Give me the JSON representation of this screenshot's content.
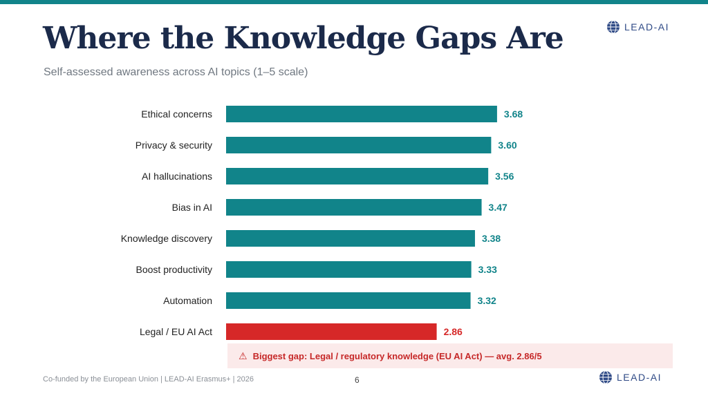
{
  "slide": {
    "title": "Where the Knowledge Gaps Are",
    "subtitle": "Self-assessed awareness across AI topics (1–5 scale)",
    "logo_text": "LEAD-AI",
    "footer": "Co-funded by the European Union  |  LEAD-AI Erasmus+  |  2026",
    "page_number": "6",
    "callout": {
      "icon": "warning-icon",
      "text": "Biggest gap: Legal / regulatory knowledge (EU AI Act) — avg. 2.86/5"
    },
    "colors": {
      "accent": "#11848a",
      "highlight": "#d62828",
      "title": "#1b2a4a"
    }
  },
  "chart_data": {
    "type": "bar",
    "orientation": "horizontal",
    "title": "Where the Knowledge Gaps Are",
    "subtitle": "Self-assessed awareness across AI topics (1–5 scale)",
    "xlabel": "",
    "ylabel": "",
    "xlim": [
      0,
      5
    ],
    "grid": false,
    "categories": [
      "Ethical concerns",
      "Privacy & security",
      "AI hallucinations",
      "Bias in AI",
      "Knowledge discovery",
      "Boost productivity",
      "Automation",
      "Legal / EU AI Act"
    ],
    "values": [
      3.68,
      3.6,
      3.56,
      3.47,
      3.38,
      3.33,
      3.32,
      2.86
    ],
    "value_labels": [
      "3.68",
      "3.60",
      "3.56",
      "3.47",
      "3.38",
      "3.33",
      "3.32",
      "2.86"
    ],
    "highlight": [
      "Legal / EU AI Act"
    ]
  }
}
